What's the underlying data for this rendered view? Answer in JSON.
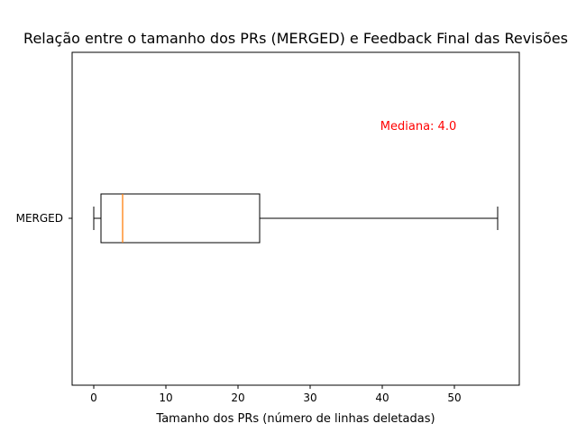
{
  "chart_data": {
    "type": "boxplot",
    "orientation": "horizontal",
    "title": "Relação entre o tamanho dos PRs (MERGED) e Feedback Final das Revisões",
    "xlabel": "Tamanho dos PRs (número de linhas deletadas)",
    "ylabel": "",
    "xlim": [
      -3,
      59
    ],
    "x_ticks": [
      0,
      10,
      20,
      30,
      40,
      50
    ],
    "grid": false,
    "categories": [
      "MERGED"
    ],
    "boxes": [
      {
        "category": "MERGED",
        "whisker_low": 0,
        "q1": 1,
        "median": 4,
        "q3": 23,
        "whisker_high": 56
      }
    ],
    "annotation": {
      "text": "Mediana: 4.0",
      "x": 45,
      "color": "#ff0000"
    },
    "colors": {
      "box": "#000000",
      "median": "#ff7f0e",
      "annotation": "#ff0000"
    }
  }
}
